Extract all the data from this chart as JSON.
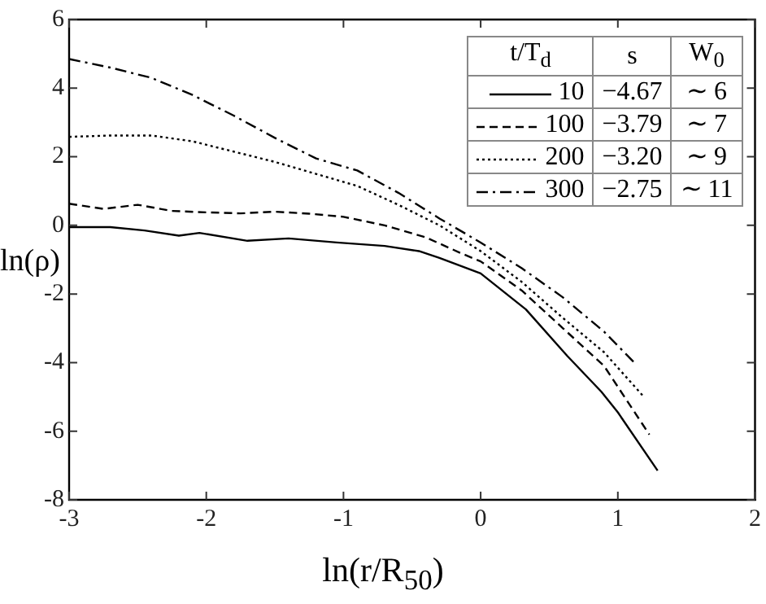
{
  "chart_data": {
    "type": "line",
    "xlabel": "ln(r/R$_{50}$)",
    "ylabel": "ln(ρ)",
    "legend_title": "t/T$_{d}$",
    "legend": "top right",
    "grid": false,
    "marker": "none",
    "xlim": [
      -3,
      2
    ],
    "xticks": [
      -3,
      -2,
      -1,
      0,
      1,
      2
    ],
    "ylim": [
      -8,
      6
    ],
    "yticks": [
      -8,
      -6,
      -4,
      -2,
      0,
      2,
      4,
      6
    ],
    "annotations": [
      "s",
      "−4.67",
      "−3.79",
      "−3.20",
      "−2.75",
      "W$_{0}$",
      "∼ 6",
      "∼ 7",
      "∼ 9",
      "∼ 11"
    ],
    "series": [
      {
        "name": "10",
        "color": "#000000",
        "line_style": "solid",
        "x": [
          -3,
          -2.7,
          -2.45,
          -2.2,
          -2.05,
          -1.7,
          -1.4,
          -1.05,
          -0.7,
          -0.45,
          -0.3,
          0,
          0.33,
          0.63,
          0.88,
          1.0,
          1.29
        ],
        "values": [
          -0.05,
          -0.05,
          -0.15,
          -0.3,
          -0.22,
          -0.45,
          -0.38,
          -0.5,
          -0.6,
          -0.75,
          -0.95,
          -1.4,
          -2.45,
          -3.8,
          -4.85,
          -5.45,
          -7.15
        ]
      },
      {
        "name": "100",
        "color": "#000000",
        "line_style": "dashed",
        "x": [
          -3,
          -2.75,
          -2.5,
          -2.25,
          -2,
          -1.75,
          -1.5,
          -1.25,
          -1,
          -0.7,
          -0.4,
          -0.15,
          0,
          0.3,
          0.6,
          0.9,
          1.23
        ],
        "values": [
          0.63,
          0.48,
          0.6,
          0.42,
          0.38,
          0.35,
          0.4,
          0.34,
          0.25,
          0.0,
          -0.35,
          -0.8,
          -1.05,
          -1.9,
          -3.0,
          -4.1,
          -6.1
        ]
      },
      {
        "name": "200",
        "color": "#000000",
        "line_style": "dotted",
        "x": [
          -3,
          -2.7,
          -2.4,
          -2.1,
          -1.8,
          -1.5,
          -1.2,
          -0.9,
          -0.6,
          -0.3,
          0,
          0.3,
          0.6,
          0.9,
          1.19
        ],
        "values": [
          2.58,
          2.62,
          2.62,
          2.45,
          2.15,
          1.85,
          1.5,
          1.15,
          0.6,
          0.0,
          -0.75,
          -1.65,
          -2.7,
          -3.7,
          -5.0
        ]
      },
      {
        "name": "300",
        "color": "#000000",
        "line_style": "dashdot",
        "x": [
          -3,
          -2.7,
          -2.4,
          -2.1,
          -1.8,
          -1.5,
          -1.2,
          -0.9,
          -0.6,
          -0.3,
          0,
          0.3,
          0.6,
          0.9,
          1.12
        ],
        "values": [
          4.85,
          4.6,
          4.3,
          3.8,
          3.2,
          2.55,
          1.95,
          1.6,
          0.95,
          0.2,
          -0.5,
          -1.25,
          -2.1,
          -3.1,
          -4.0
        ]
      }
    ]
  }
}
